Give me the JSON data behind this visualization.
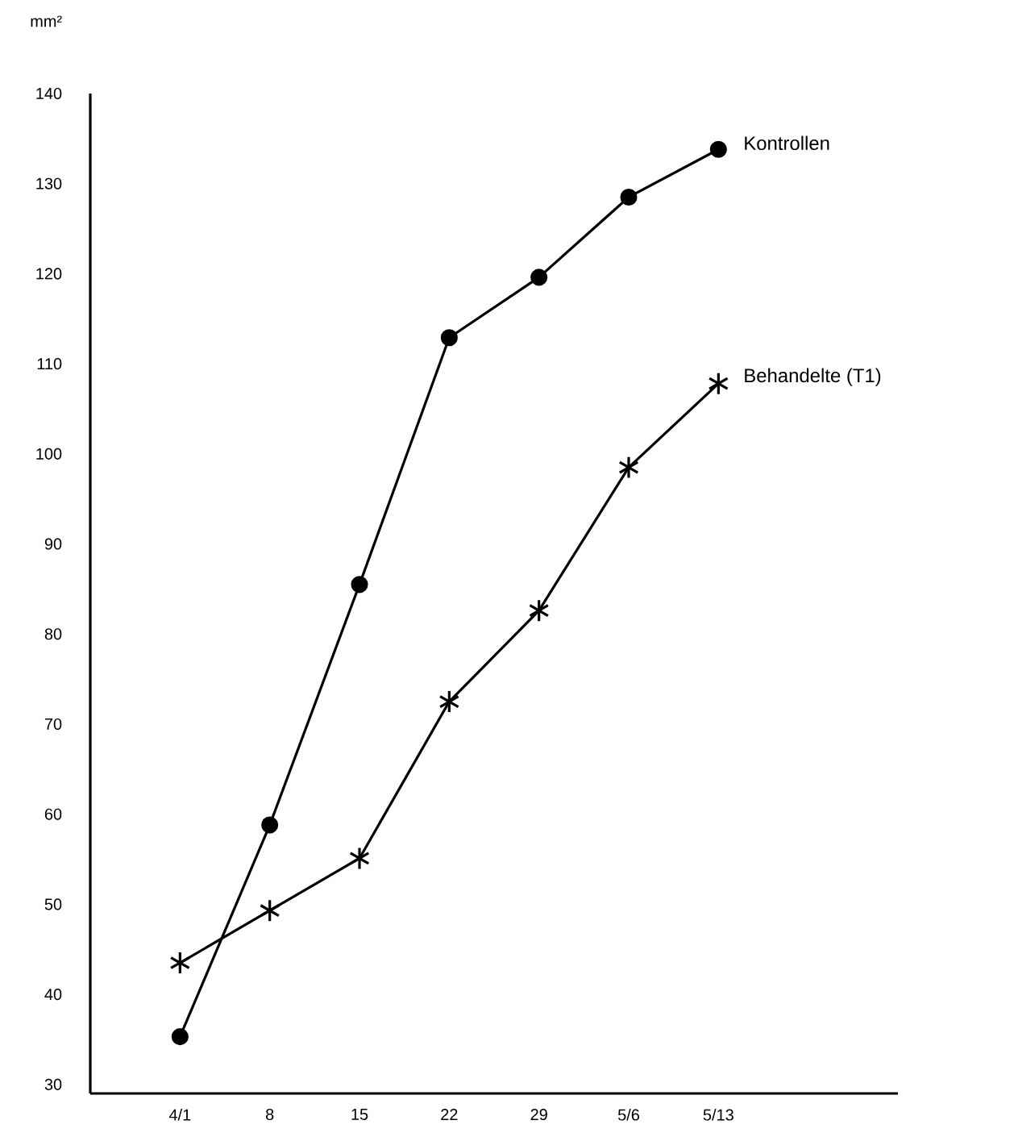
{
  "chart_data": {
    "type": "line",
    "ylabel": "mm²",
    "categories": [
      "4/1",
      "8",
      "15",
      "22",
      "29",
      "5/6",
      "5/13"
    ],
    "ylim": [
      29,
      140
    ],
    "yticks": [
      30,
      40,
      50,
      60,
      70,
      80,
      90,
      100,
      110,
      120,
      130,
      140
    ],
    "grid": false,
    "legend": false,
    "line_style": "solid",
    "series": [
      {
        "name": "Kontrollen",
        "color": "#000000",
        "marker": "circle",
        "values": [
          35.3,
          58.8,
          85.5,
          112.9,
          119.6,
          128.5,
          133.8
        ]
      },
      {
        "name": "Behandelte (T1)",
        "color": "#000000",
        "marker": "cross",
        "values": [
          43.5,
          49.3,
          55.1,
          72.5,
          82.6,
          98.5,
          107.8
        ]
      }
    ]
  }
}
